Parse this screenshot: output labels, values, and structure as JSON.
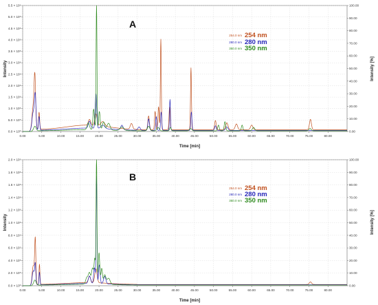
{
  "chart_data": [
    {
      "type": "line",
      "panel_label": "A",
      "xlabel": "Time [min]",
      "ylabel": "Intensity",
      "y2label": "Intensity [%]",
      "xlim": [
        0,
        85
      ],
      "ylim": [
        0,
        5.5
      ],
      "y2lim": [
        0,
        100
      ],
      "x_ticks": [
        "0.00",
        "5.00",
        "10.00",
        "15.00",
        "20.00",
        "25.00",
        "30.00",
        "35.00",
        "40.00",
        "45.00",
        "50.00",
        "55.00",
        "60.00",
        "65.00",
        "70.00",
        "75.00",
        "80.00"
      ],
      "y_ticks": [
        "0.0 × 10⁰",
        "5.0 × 10⁵",
        "1.0 × 10⁶",
        "1.5 × 10⁶",
        "2.0 × 10⁶",
        "2.5 × 10⁶",
        "3.0 × 10⁶",
        "3.5 × 10⁶",
        "4.0 × 10⁶",
        "4.5 × 10⁶",
        "5.0 × 10⁶",
        "5.5 × 10⁶"
      ],
      "y2_ticks": [
        "0.00",
        "10.00",
        "20.00",
        "30.00",
        "40.00",
        "50.00",
        "60.00",
        "70.00",
        "80.00",
        "90.00",
        "100.00"
      ],
      "grid": true,
      "legend_placement": "top-right",
      "legend": [
        {
          "small": "254.0 nm",
          "big": "254 nm",
          "color": "#c0501e"
        },
        {
          "small": "280.0 nm",
          "big": "280 nm",
          "color": "#2626b8"
        },
        {
          "small": "350.0 nm",
          "big": "350 nm",
          "color": "#2e8a1e"
        }
      ],
      "series": [
        {
          "name": "254 nm",
          "color": "#c0501e",
          "baseline": 0.08,
          "tail": 0.2,
          "peaks": [
            [
              2.8,
              1.0,
              0.35
            ],
            [
              3.2,
              1.95,
              0.2
            ],
            [
              4.3,
              0.75,
              0.15
            ],
            [
              17.5,
              0.25,
              0.3
            ],
            [
              19.2,
              0.5,
              0.3
            ],
            [
              21,
              0.2,
              0.5
            ],
            [
              28.5,
              0.25,
              0.3
            ],
            [
              33,
              0.6,
              0.2
            ],
            [
              34.7,
              0.8,
              0.15
            ],
            [
              35.6,
              1.0,
              0.15
            ],
            [
              36.2,
              3.95,
              0.12
            ],
            [
              38.5,
              1.0,
              0.15
            ],
            [
              44.1,
              2.7,
              0.12
            ],
            [
              50.5,
              0.4,
              0.2
            ],
            [
              53.5,
              0.3,
              0.3
            ],
            [
              56,
              0.25,
              0.3
            ],
            [
              60,
              0.2,
              0.3
            ],
            [
              75.4,
              0.45,
              0.25
            ]
          ]
        },
        {
          "name": "280 nm",
          "color": "#2626b8",
          "baseline": 0.05,
          "tail": 0.1,
          "peaks": [
            [
              2.8,
              0.8,
              0.35
            ],
            [
              3.3,
              1.35,
              0.2
            ],
            [
              4.3,
              0.6,
              0.15
            ],
            [
              17.5,
              0.3,
              0.3
            ],
            [
              19.2,
              1.5,
              0.2
            ],
            [
              21,
              0.15,
              0.5
            ],
            [
              26,
              0.2,
              0.3
            ],
            [
              30.5,
              0.15,
              0.3
            ],
            [
              33,
              0.5,
              0.2
            ],
            [
              35,
              0.6,
              0.15
            ],
            [
              36.3,
              0.8,
              0.15
            ],
            [
              38.6,
              1.35,
              0.12
            ],
            [
              44.2,
              0.8,
              0.15
            ],
            [
              50.5,
              0.2,
              0.2
            ],
            [
              53.5,
              0.15,
              0.3
            ]
          ]
        },
        {
          "name": "350 nm",
          "color": "#2e8a1e",
          "baseline": 0.03,
          "tail": 0.05,
          "peaks": [
            [
              3.2,
              0.2,
              0.3
            ],
            [
              17.2,
              0.3,
              0.3
            ],
            [
              18.6,
              0.9,
              0.2
            ],
            [
              19.35,
              5.5,
              0.12
            ],
            [
              20.1,
              0.8,
              0.2
            ],
            [
              21.2,
              0.35,
              0.3
            ],
            [
              22.5,
              0.3,
              0.4
            ],
            [
              26,
              0.15,
              0.5
            ],
            [
              33,
              0.2,
              0.3
            ],
            [
              35.5,
              0.15,
              0.3
            ],
            [
              38.7,
              0.15,
              0.2
            ],
            [
              44,
              0.1,
              0.3
            ],
            [
              51.3,
              0.25,
              0.2
            ],
            [
              53,
              0.4,
              0.2
            ],
            [
              57.5,
              0.25,
              0.2
            ],
            [
              60.5,
              0.15,
              0.3
            ],
            [
              75.3,
              0.1,
              0.3
            ]
          ]
        }
      ]
    },
    {
      "type": "line",
      "panel_label": "B",
      "xlabel": "Time [min]",
      "ylabel": "Intensity",
      "y2label": "Intensity [%]",
      "xlim": [
        0,
        85
      ],
      "ylim": [
        0,
        2.0
      ],
      "y2lim": [
        0,
        100
      ],
      "x_ticks": [
        "0.00",
        "5.00",
        "10.00",
        "15.00",
        "20.00",
        "25.00",
        "30.00",
        "35.00",
        "40.00",
        "45.00",
        "50.00",
        "55.00",
        "60.00",
        "65.00",
        "70.00",
        "75.00",
        "80.00"
      ],
      "y_ticks": [
        "0.0 × 10⁰",
        "2.0 × 10⁵",
        "4.0 × 10⁵",
        "6.0 × 10⁵",
        "8.0 × 10⁵",
        "1.0 × 10⁶",
        "1.2 × 10⁶",
        "1.4 × 10⁶",
        "1.6 × 10⁶",
        "1.8 × 10⁶",
        "2.0 × 10⁶"
      ],
      "y2_ticks": [
        "0.00",
        "10.00",
        "20.00",
        "30.00",
        "40.00",
        "50.00",
        "60.00",
        "70.00",
        "80.00",
        "90.00",
        "100.00"
      ],
      "grid": true,
      "legend_placement": "top-right",
      "legend": [
        {
          "small": "254.0 nm",
          "big": "254 nm",
          "color": "#c0501e"
        },
        {
          "small": "280.0 nm",
          "big": "280 nm",
          "color": "#2626b8"
        },
        {
          "small": "350.0 nm",
          "big": "350 nm",
          "color": "#2e8a1e"
        }
      ],
      "series": [
        {
          "name": "254 nm",
          "color": "#c0501e",
          "baseline": 0.02,
          "tail": 0.03,
          "peaks": [
            [
              2.8,
              0.3,
              0.3
            ],
            [
              3.3,
              0.68,
              0.15
            ],
            [
              4.4,
              0.32,
              0.12
            ],
            [
              17.5,
              0.1,
              0.3
            ],
            [
              19.2,
              0.22,
              0.3
            ],
            [
              75.4,
              0.04,
              0.3
            ]
          ]
        },
        {
          "name": "280 nm",
          "color": "#2626b8",
          "baseline": 0.015,
          "tail": 0.02,
          "peaks": [
            [
              2.8,
              0.22,
              0.3
            ],
            [
              3.3,
              0.3,
              0.15
            ],
            [
              4.4,
              0.2,
              0.12
            ],
            [
              17.5,
              0.12,
              0.3
            ],
            [
              18.8,
              0.25,
              0.2
            ],
            [
              19.35,
              1.7,
              0.12
            ],
            [
              20.1,
              0.3,
              0.2
            ],
            [
              21.5,
              0.12,
              0.3
            ]
          ]
        },
        {
          "name": "350 nm",
          "color": "#2e8a1e",
          "baseline": 0.01,
          "tail": 0.015,
          "peaks": [
            [
              3.2,
              0.08,
              0.3
            ],
            [
              16.8,
              0.1,
              0.3
            ],
            [
              17.5,
              0.18,
              0.3
            ],
            [
              18.3,
              0.25,
              0.25
            ],
            [
              18.9,
              0.4,
              0.2
            ],
            [
              19.35,
              2.0,
              0.12
            ],
            [
              20.0,
              0.5,
              0.2
            ],
            [
              20.7,
              0.25,
              0.2
            ],
            [
              21.5,
              0.15,
              0.3
            ],
            [
              22.5,
              0.1,
              0.4
            ]
          ]
        }
      ]
    }
  ]
}
